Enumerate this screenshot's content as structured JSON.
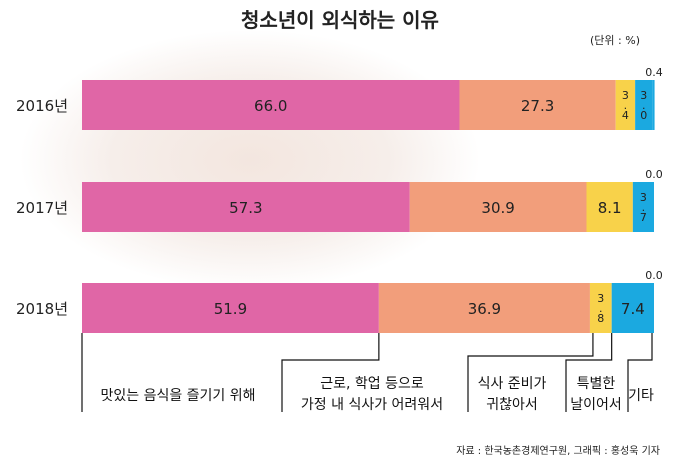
{
  "chart_data": {
    "type": "bar",
    "orientation": "horizontal-stacked-100",
    "title": "청소년이 외식하는 이유",
    "unit": "(단위 : %)",
    "categories": [
      "2016년",
      "2017년",
      "2018년"
    ],
    "series": [
      {
        "name": "맛있는 음식을 즐기기 위해",
        "color": "#e066a6",
        "values": [
          66.0,
          57.3,
          51.9
        ],
        "labels": [
          "66.0",
          "57.3",
          "51.9"
        ]
      },
      {
        "name": "근로, 학업 등으로 가정 내 식사가 어려워서",
        "color": "#f29e7b",
        "values": [
          27.3,
          30.9,
          36.9
        ],
        "labels": [
          "27.3",
          "30.9",
          "36.9"
        ]
      },
      {
        "name": "식사 준비가 귀찮아서",
        "color": "#f8d24a",
        "values": [
          3.4,
          8.1,
          3.8
        ],
        "labels": [
          "3.4",
          "8.1",
          "3.8"
        ]
      },
      {
        "name": "특별한 날이어서",
        "color": "#1ba9e0",
        "values": [
          3.0,
          3.7,
          7.4
        ],
        "labels": [
          "3.0",
          "3.7",
          "7.4"
        ]
      },
      {
        "name": "기타",
        "color": "#1ba9e0",
        "values": [
          0.4,
          0.0,
          0.0
        ],
        "labels": [
          "0.4",
          "0.0",
          "0.0"
        ]
      }
    ],
    "xlim": [
      0,
      100
    ],
    "reason_lines": [
      [
        "맛있는 음식을 즐기기 위해"
      ],
      [
        "근로, 학업 등으로",
        "가정 내 식사가 어려워서"
      ],
      [
        "식사 준비가",
        "귀찮아서"
      ],
      [
        "특별한",
        "날이어서"
      ],
      [
        "기타"
      ]
    ]
  },
  "source": "자료 : 한국농촌경제연구원, 그래픽 : 홍성욱 기자"
}
